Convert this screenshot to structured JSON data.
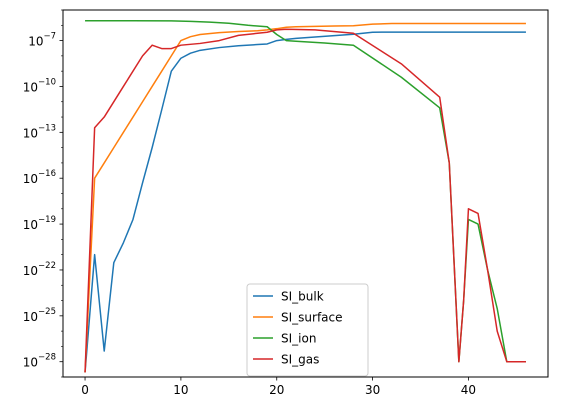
{
  "chart_data": {
    "type": "line",
    "title": "",
    "xlabel": "",
    "ylabel": "",
    "xlim": [
      -2.3,
      48.3
    ],
    "ylim": [
      1e-29,
      1e-05
    ],
    "yscale": "log",
    "grid": false,
    "legend_position": "lower-center",
    "x_ticks": [
      0,
      10,
      20,
      30,
      40
    ],
    "x_tick_labels": [
      "0",
      "10",
      "20",
      "30",
      "40"
    ],
    "y_ticks": [
      1e-28,
      1e-25,
      1e-22,
      1e-19,
      1e-16,
      1e-13,
      1e-10,
      1e-07
    ],
    "y_tick_labels": [
      {
        "base": "10",
        "exp": "−28"
      },
      {
        "base": "10",
        "exp": "−25"
      },
      {
        "base": "10",
        "exp": "−22"
      },
      {
        "base": "10",
        "exp": "−19"
      },
      {
        "base": "10",
        "exp": "−16"
      },
      {
        "base": "10",
        "exp": "−13"
      },
      {
        "base": "10",
        "exp": "−10"
      },
      {
        "base": "10",
        "exp": "−7"
      }
    ],
    "series": [
      {
        "name": "SI_bulk",
        "color": "#1f77b4",
        "x": [
          0,
          1,
          2,
          3,
          4,
          5,
          6,
          7,
          8,
          9,
          10,
          11,
          12,
          14,
          16,
          18,
          19,
          20,
          21,
          22,
          24,
          26,
          28,
          30,
          32,
          35,
          40,
          46
        ],
        "y": [
          2e-29,
          1e-21,
          5e-28,
          3e-22,
          6e-21,
          2e-19,
          5e-17,
          1e-14,
          3e-12,
          1e-09,
          7e-09,
          1.5e-08,
          2.3e-08,
          3.5e-08,
          4.6e-08,
          5.5e-08,
          6e-08,
          1e-07,
          1.2e-07,
          1.4e-07,
          1.7e-07,
          2.1e-07,
          2.6e-07,
          3.5e-07,
          3.6e-07,
          3.6e-07,
          3.6e-07,
          3.6e-07
        ]
      },
      {
        "name": "SI_surface",
        "color": "#ff7f0e",
        "x": [
          0,
          1,
          2,
          3,
          4,
          5,
          6,
          7,
          8,
          9,
          10,
          11,
          12,
          14,
          16,
          18,
          19,
          20,
          21,
          22,
          24,
          26,
          28,
          30,
          32,
          35,
          40,
          46
        ],
        "y": [
          2e-29,
          1e-16,
          1e-15,
          1e-14,
          1e-13,
          1e-12,
          1e-11,
          1e-10,
          1e-09,
          1e-08,
          1e-07,
          1.8e-07,
          2.5e-07,
          3.3e-07,
          3.9e-07,
          4.4e-07,
          5e-07,
          6e-07,
          7.5e-07,
          8e-07,
          8.5e-07,
          9e-07,
          9.3e-07,
          1.2e-06,
          1.3e-06,
          1.3e-06,
          1.3e-06,
          1.3e-06
        ]
      },
      {
        "name": "SI_ion",
        "color": "#2ca02c",
        "x": [
          0,
          2,
          5,
          9,
          11,
          13,
          15,
          17,
          19,
          20,
          21,
          22,
          25,
          28,
          33,
          37,
          38,
          39,
          39.5,
          40,
          41,
          42,
          43,
          44,
          46
        ],
        "y": [
          2e-06,
          2e-06,
          2e-06,
          1.95e-06,
          1.8e-06,
          1.6e-06,
          1.35e-06,
          1e-06,
          8e-07,
          2.5e-07,
          1e-07,
          9e-08,
          7e-08,
          5e-08,
          4e-10,
          4e-12,
          1e-15,
          1e-28,
          1e-24,
          2e-19,
          1e-19,
          1e-22,
          3e-25,
          1e-28,
          1e-28
        ]
      },
      {
        "name": "SI_gas",
        "color": "#d62728",
        "x": [
          0,
          1,
          2,
          4,
          6,
          7,
          8,
          9,
          10,
          12,
          14,
          16,
          18,
          19,
          20,
          21,
          24,
          28,
          33,
          37,
          38,
          39,
          39.5,
          40,
          41,
          42,
          43,
          44,
          46
        ],
        "y": [
          2e-29,
          2e-13,
          1e-12,
          1e-10,
          1e-08,
          5e-08,
          3e-08,
          3e-08,
          5e-08,
          6.5e-08,
          1e-07,
          2.2e-07,
          3e-07,
          3.5e-07,
          5e-07,
          5.5e-07,
          5e-07,
          3e-07,
          3e-09,
          2e-11,
          1e-15,
          1e-28,
          1e-24,
          1e-18,
          5e-19,
          1e-22,
          1e-26,
          1e-28,
          1e-28
        ]
      }
    ]
  }
}
